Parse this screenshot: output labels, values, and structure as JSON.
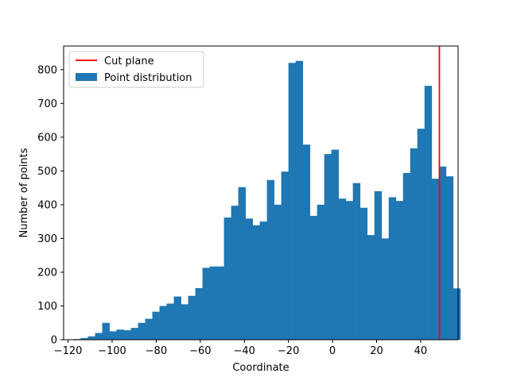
{
  "chart_data": {
    "type": "bar",
    "title": "",
    "xlabel": "Coordinate",
    "ylabel": "Number of points",
    "xlim": [
      -122,
      57
    ],
    "ylim": [
      0,
      870
    ],
    "x_ticks": [
      -120,
      -100,
      -80,
      -60,
      -40,
      -20,
      0,
      20,
      40
    ],
    "x_tick_labels": [
      "−120",
      "−100",
      "−80",
      "−60",
      "−40",
      "−20",
      "0",
      "20",
      "40"
    ],
    "y_ticks": [
      0,
      100,
      200,
      300,
      400,
      500,
      600,
      700,
      800
    ],
    "y_tick_labels": [
      "0",
      "100",
      "200",
      "300",
      "400",
      "500",
      "600",
      "700",
      "800"
    ],
    "grid": false,
    "legend_position": "upper-left",
    "bin_start": -117.5,
    "bin_width": 3.25,
    "series": [
      {
        "name": "Point distribution",
        "kind": "histogram",
        "color": "#1f77b4",
        "values": [
          2,
          5,
          10,
          20,
          50,
          25,
          30,
          28,
          35,
          50,
          62,
          83,
          100,
          107,
          128,
          105,
          130,
          153,
          213,
          217,
          217,
          362,
          397,
          452,
          359,
          339,
          350,
          473,
          400,
          498,
          820,
          826,
          578,
          367,
          400,
          550,
          563,
          418,
          411,
          464,
          391,
          310,
          440,
          300,
          422,
          411,
          494,
          567,
          625,
          752,
          477,
          513,
          484,
          152
        ]
      },
      {
        "name": "Cut plane",
        "kind": "vline",
        "color": "#ff0000",
        "x": 48.5
      }
    ]
  }
}
